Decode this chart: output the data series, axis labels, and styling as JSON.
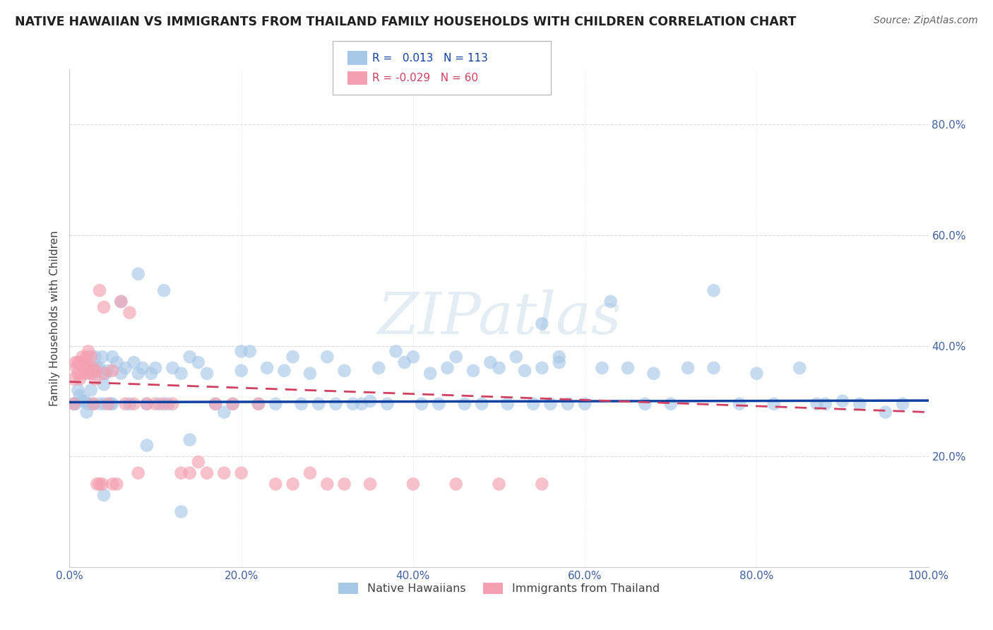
{
  "title": "NATIVE HAWAIIAN VS IMMIGRANTS FROM THAILAND FAMILY HOUSEHOLDS WITH CHILDREN CORRELATION CHART",
  "source": "Source: ZipAtlas.com",
  "ylabel": "Family Households with Children",
  "xlim": [
    0.0,
    1.0
  ],
  "ylim": [
    0.0,
    0.9
  ],
  "xticks": [
    0.0,
    0.2,
    0.4,
    0.6,
    0.8,
    1.0
  ],
  "yticks": [
    0.2,
    0.4,
    0.6,
    0.8
  ],
  "xtick_labels": [
    "0.0%",
    "20.0%",
    "40.0%",
    "60.0%",
    "80.0%",
    "100.0%"
  ],
  "ytick_labels": [
    "20.0%",
    "40.0%",
    "60.0%",
    "80.0%"
  ],
  "legend1_label": "R =   0.013   N = 113",
  "legend2_label": "R = -0.029   N = 60",
  "legend_series1": "Native Hawaiians",
  "legend_series2": "Immigrants from Thailand",
  "color_blue": "#a8c8e8",
  "color_pink": "#f4a0b0",
  "line_blue": "#1040a0",
  "line_pink": "#d04060",
  "watermark_color": "#d8e8f0",
  "grid_color": "#d8d8d8",
  "background": "#ffffff",
  "title_color": "#202020",
  "source_color": "#606060",
  "axis_label_color": "#4060a0",
  "ylabel_color": "#404040",
  "blue_slope": 0.003,
  "blue_intercept": 0.298,
  "pink_slope": -0.055,
  "pink_intercept": 0.335,
  "blue_points_x": [
    0.005,
    0.007,
    0.01,
    0.012,
    0.015,
    0.018,
    0.02,
    0.022,
    0.025,
    0.025,
    0.028,
    0.03,
    0.03,
    0.032,
    0.035,
    0.035,
    0.038,
    0.04,
    0.04,
    0.042,
    0.045,
    0.048,
    0.05,
    0.05,
    0.055,
    0.06,
    0.065,
    0.07,
    0.075,
    0.08,
    0.085,
    0.09,
    0.095,
    0.1,
    0.105,
    0.11,
    0.115,
    0.12,
    0.13,
    0.14,
    0.15,
    0.16,
    0.17,
    0.18,
    0.19,
    0.2,
    0.21,
    0.22,
    0.23,
    0.24,
    0.25,
    0.26,
    0.27,
    0.28,
    0.29,
    0.3,
    0.31,
    0.32,
    0.33,
    0.34,
    0.35,
    0.36,
    0.37,
    0.38,
    0.39,
    0.4,
    0.41,
    0.42,
    0.43,
    0.44,
    0.45,
    0.46,
    0.47,
    0.48,
    0.49,
    0.5,
    0.51,
    0.52,
    0.53,
    0.54,
    0.55,
    0.56,
    0.57,
    0.58,
    0.6,
    0.62,
    0.63,
    0.65,
    0.67,
    0.68,
    0.7,
    0.72,
    0.75,
    0.78,
    0.8,
    0.82,
    0.85,
    0.87,
    0.88,
    0.9,
    0.92,
    0.95,
    0.97,
    0.14,
    0.2,
    0.55,
    0.57,
    0.75,
    0.13,
    0.08,
    0.04,
    0.06,
    0.09
  ],
  "blue_points_y": [
    0.295,
    0.295,
    0.32,
    0.31,
    0.3,
    0.3,
    0.28,
    0.295,
    0.355,
    0.32,
    0.295,
    0.38,
    0.35,
    0.36,
    0.36,
    0.295,
    0.38,
    0.295,
    0.33,
    0.35,
    0.355,
    0.295,
    0.38,
    0.295,
    0.37,
    0.35,
    0.36,
    0.295,
    0.37,
    0.35,
    0.36,
    0.295,
    0.35,
    0.36,
    0.295,
    0.5,
    0.295,
    0.36,
    0.35,
    0.23,
    0.37,
    0.35,
    0.295,
    0.28,
    0.295,
    0.355,
    0.39,
    0.295,
    0.36,
    0.295,
    0.355,
    0.38,
    0.295,
    0.35,
    0.295,
    0.38,
    0.295,
    0.355,
    0.295,
    0.295,
    0.3,
    0.36,
    0.295,
    0.39,
    0.37,
    0.38,
    0.295,
    0.35,
    0.295,
    0.36,
    0.38,
    0.295,
    0.355,
    0.295,
    0.37,
    0.36,
    0.295,
    0.38,
    0.355,
    0.295,
    0.36,
    0.295,
    0.38,
    0.295,
    0.295,
    0.36,
    0.48,
    0.36,
    0.295,
    0.35,
    0.295,
    0.36,
    0.36,
    0.295,
    0.35,
    0.295,
    0.36,
    0.295,
    0.295,
    0.3,
    0.295,
    0.28,
    0.295,
    0.38,
    0.39,
    0.44,
    0.37,
    0.5,
    0.1,
    0.53,
    0.13,
    0.48,
    0.22
  ],
  "pink_points_x": [
    0.005,
    0.005,
    0.007,
    0.008,
    0.01,
    0.01,
    0.012,
    0.012,
    0.015,
    0.015,
    0.018,
    0.018,
    0.02,
    0.02,
    0.022,
    0.022,
    0.025,
    0.025,
    0.028,
    0.028,
    0.03,
    0.03,
    0.032,
    0.035,
    0.035,
    0.038,
    0.04,
    0.04,
    0.045,
    0.05,
    0.05,
    0.055,
    0.06,
    0.065,
    0.07,
    0.075,
    0.08,
    0.09,
    0.1,
    0.11,
    0.12,
    0.13,
    0.14,
    0.15,
    0.16,
    0.17,
    0.18,
    0.19,
    0.2,
    0.22,
    0.24,
    0.26,
    0.28,
    0.3,
    0.32,
    0.35,
    0.4,
    0.45,
    0.5,
    0.55
  ],
  "pink_points_y": [
    0.34,
    0.295,
    0.37,
    0.36,
    0.35,
    0.37,
    0.34,
    0.37,
    0.35,
    0.38,
    0.37,
    0.36,
    0.38,
    0.35,
    0.36,
    0.39,
    0.38,
    0.35,
    0.36,
    0.295,
    0.355,
    0.34,
    0.15,
    0.5,
    0.15,
    0.15,
    0.35,
    0.47,
    0.295,
    0.355,
    0.15,
    0.15,
    0.48,
    0.295,
    0.46,
    0.295,
    0.17,
    0.295,
    0.295,
    0.295,
    0.295,
    0.17,
    0.17,
    0.19,
    0.17,
    0.295,
    0.17,
    0.295,
    0.17,
    0.295,
    0.15,
    0.15,
    0.17,
    0.15,
    0.15,
    0.15,
    0.15,
    0.15,
    0.15,
    0.15
  ]
}
